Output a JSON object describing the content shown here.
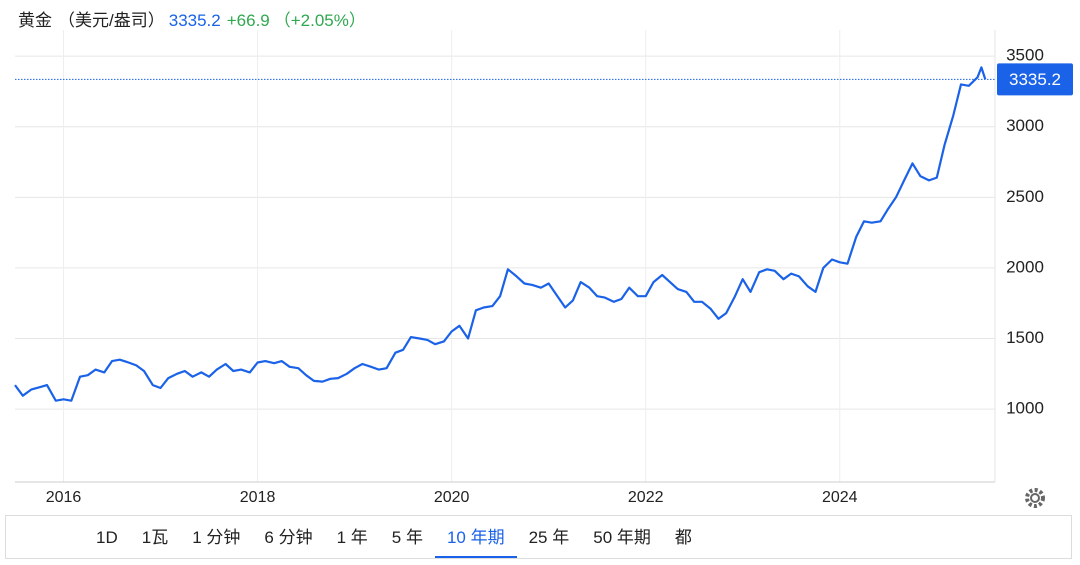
{
  "chart_data": {
    "type": "line",
    "title": "黄金",
    "unit": "（美元/盎司）",
    "price": "3335.2",
    "change": "+66.9",
    "change_pct": "（+2.05%）",
    "x": [
      2015.5,
      2015.58,
      2015.67,
      2015.75,
      2015.83,
      2015.92,
      2016.0,
      2016.08,
      2016.17,
      2016.25,
      2016.33,
      2016.42,
      2016.5,
      2016.58,
      2016.67,
      2016.75,
      2016.83,
      2016.92,
      2017.0,
      2017.08,
      2017.17,
      2017.25,
      2017.33,
      2017.42,
      2017.5,
      2017.58,
      2017.67,
      2017.75,
      2017.83,
      2017.92,
      2018.0,
      2018.08,
      2018.17,
      2018.25,
      2018.33,
      2018.42,
      2018.5,
      2018.58,
      2018.67,
      2018.75,
      2018.83,
      2018.92,
      2019.0,
      2019.08,
      2019.17,
      2019.25,
      2019.33,
      2019.42,
      2019.5,
      2019.58,
      2019.67,
      2019.75,
      2019.83,
      2019.92,
      2020.0,
      2020.08,
      2020.17,
      2020.25,
      2020.33,
      2020.42,
      2020.5,
      2020.58,
      2020.67,
      2020.75,
      2020.83,
      2020.92,
      2021.0,
      2021.08,
      2021.17,
      2021.25,
      2021.33,
      2021.42,
      2021.5,
      2021.58,
      2021.67,
      2021.75,
      2021.83,
      2021.92,
      2022.0,
      2022.08,
      2022.17,
      2022.25,
      2022.33,
      2022.42,
      2022.5,
      2022.58,
      2022.67,
      2022.75,
      2022.83,
      2022.92,
      2023.0,
      2023.08,
      2023.17,
      2023.25,
      2023.33,
      2023.42,
      2023.5,
      2023.58,
      2023.67,
      2023.75,
      2023.83,
      2023.92,
      2024.0,
      2024.08,
      2024.17,
      2024.25,
      2024.33,
      2024.42,
      2024.5,
      2024.58,
      2024.67,
      2024.75,
      2024.83,
      2024.92,
      2025.0,
      2025.08,
      2025.17,
      2025.25,
      2025.33,
      2025.42,
      2025.46,
      2025.5
    ],
    "series": [
      {
        "name": "黄金",
        "color": "#1a62e8",
        "values": [
          1170,
          1095,
          1140,
          1155,
          1170,
          1060,
          1070,
          1060,
          1230,
          1240,
          1280,
          1260,
          1340,
          1350,
          1330,
          1310,
          1270,
          1170,
          1150,
          1220,
          1250,
          1270,
          1230,
          1260,
          1230,
          1280,
          1320,
          1270,
          1280,
          1260,
          1330,
          1340,
          1325,
          1340,
          1300,
          1290,
          1240,
          1200,
          1195,
          1215,
          1220,
          1250,
          1290,
          1320,
          1300,
          1280,
          1290,
          1400,
          1420,
          1510,
          1500,
          1490,
          1460,
          1480,
          1550,
          1590,
          1500,
          1700,
          1720,
          1730,
          1800,
          1990,
          1940,
          1890,
          1880,
          1860,
          1890,
          1810,
          1720,
          1770,
          1900,
          1860,
          1800,
          1790,
          1760,
          1780,
          1860,
          1800,
          1800,
          1900,
          1950,
          1900,
          1850,
          1830,
          1760,
          1760,
          1710,
          1640,
          1680,
          1800,
          1920,
          1830,
          1970,
          1990,
          1980,
          1920,
          1960,
          1940,
          1870,
          1830,
          2000,
          2060,
          2040,
          2030,
          2220,
          2330,
          2320,
          2330,
          2420,
          2500,
          2630,
          2740,
          2650,
          2620,
          2640,
          2870,
          3080,
          3300,
          3290,
          3350,
          3420,
          3335.2
        ]
      }
    ],
    "xlim": [
      2015.5,
      2025.6
    ],
    "xticks": [
      2016,
      2018,
      2020,
      2022,
      2024
    ],
    "ylim": [
      484,
      3600
    ],
    "yticks": [
      1000,
      1500,
      2000,
      2500,
      3000,
      3500
    ],
    "grid": true
  },
  "range_buttons": [
    "1D",
    "1瓦",
    "1 分钟",
    "6 分钟",
    "1 年",
    "5 年",
    "10 年期",
    "25 年",
    "50 年期",
    "都"
  ],
  "active_button": 6
}
